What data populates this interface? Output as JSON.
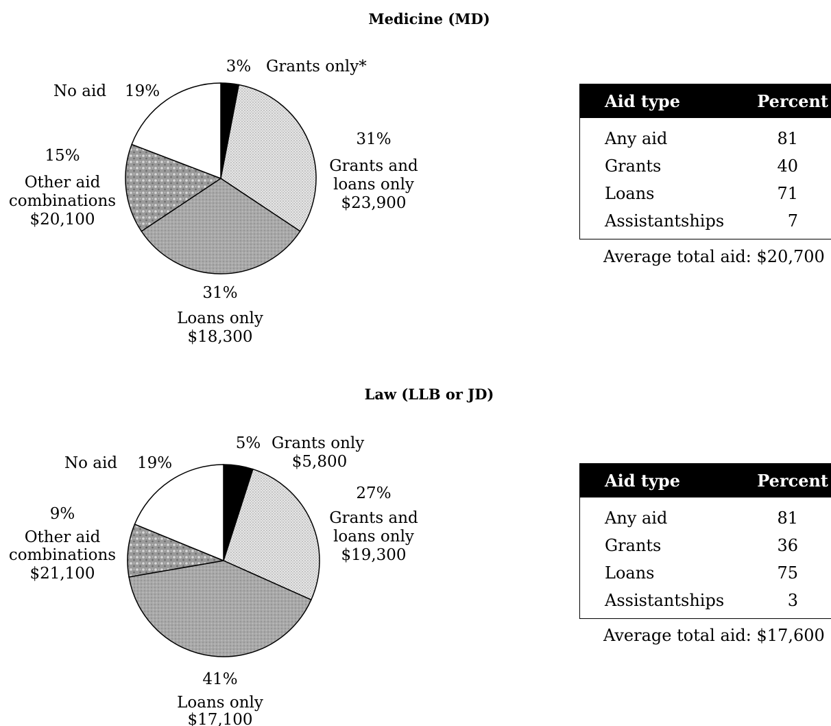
{
  "chart_data": [
    {
      "type": "pie",
      "title": "Medicine (MD)",
      "slices": [
        {
          "label": "Grants only*",
          "percent": 3,
          "amount": ""
        },
        {
          "label": "Grants and loans only",
          "percent": 31,
          "amount": "$23,900"
        },
        {
          "label": "Loans only",
          "percent": 31,
          "amount": "$18,300"
        },
        {
          "label": "Other aid combinations",
          "percent": 15,
          "amount": "$20,100"
        },
        {
          "label": "No aid",
          "percent": 19,
          "amount": ""
        }
      ],
      "table": {
        "headers": [
          "Aid type",
          "Percent"
        ],
        "rows": [
          {
            "type": "Any aid",
            "percent": "81"
          },
          {
            "type": "Grants",
            "percent": "40"
          },
          {
            "type": "Loans",
            "percent": "71"
          },
          {
            "type": "Assistantships",
            "percent": "7"
          }
        ],
        "average_label": "Average total aid:",
        "average_value": "$20,700"
      }
    },
    {
      "type": "pie",
      "title": "Law (LLB or JD)",
      "slices": [
        {
          "label": "Grants only",
          "percent": 5,
          "amount": "$5,800"
        },
        {
          "label": "Grants and loans only",
          "percent": 27,
          "amount": "$19,300"
        },
        {
          "label": "Loans only",
          "percent": 41,
          "amount": "$17,100"
        },
        {
          "label": "Other aid combinations",
          "percent": 9,
          "amount": "$21,100"
        },
        {
          "label": "No aid",
          "percent": 19,
          "amount": ""
        }
      ],
      "table": {
        "headers": [
          "Aid type",
          "Percent"
        ],
        "rows": [
          {
            "type": "Any aid",
            "percent": "81"
          },
          {
            "type": "Grants",
            "percent": "36"
          },
          {
            "type": "Loans",
            "percent": "75"
          },
          {
            "type": "Assistantships",
            "percent": "3"
          }
        ],
        "average_label": "Average total aid:",
        "average_value": "$17,600"
      }
    }
  ],
  "colors": {
    "grants_only": "#000000",
    "grants_and_loans": "#dcdcdc",
    "loans_only": "#a9a9a9",
    "other_combinations": "#8f8f8f",
    "no_aid": "#ffffff"
  }
}
